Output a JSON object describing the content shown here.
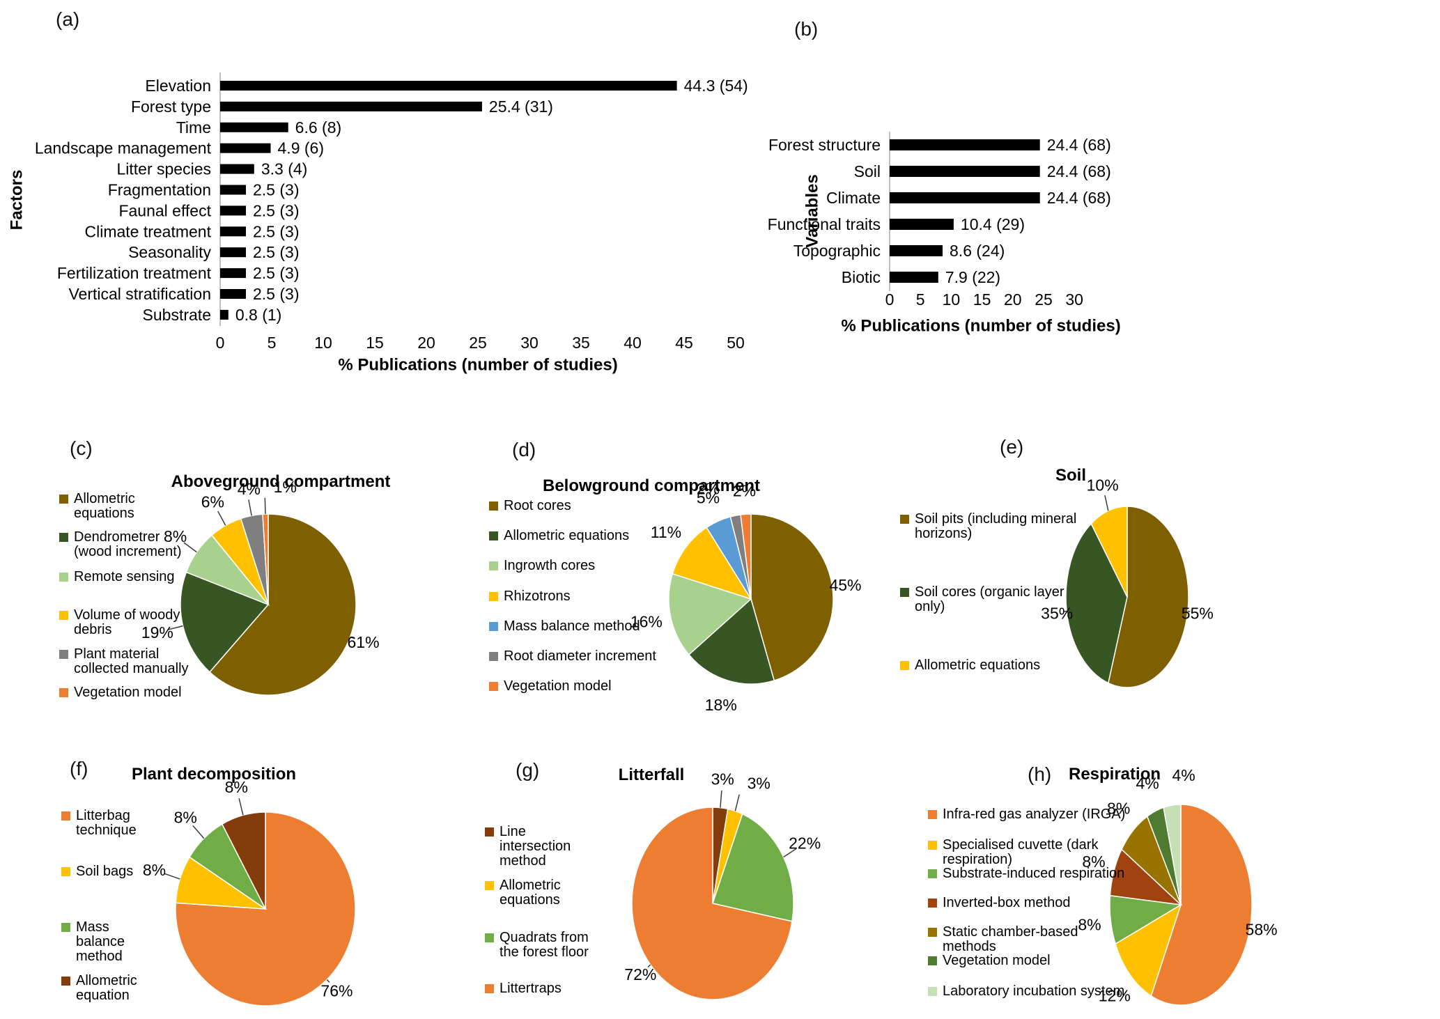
{
  "chart_data": [
    {
      "panel": "(a)",
      "type": "bar",
      "orientation": "horizontal",
      "ylabel": "Factors",
      "xlabel": "% Publications (number of studies)",
      "categories": [
        "Elevation",
        "Forest type",
        "Time",
        "Landscape management",
        "Litter species",
        "Fragmentation",
        "Faunal effect",
        "Climate treatment",
        "Seasonality",
        "Fertilization treatment",
        "Vertical stratification",
        "Substrate"
      ],
      "values": [
        44.3,
        25.4,
        6.6,
        4.9,
        3.3,
        2.5,
        2.5,
        2.5,
        2.5,
        2.5,
        2.5,
        0.8
      ],
      "counts": [
        54,
        31,
        8,
        6,
        4,
        3,
        3,
        3,
        3,
        3,
        3,
        1
      ],
      "value_labels": [
        "44.3 (54)",
        "25.4 (31)",
        "6.6 (8)",
        "4.9 (6)",
        "3.3 (4)",
        "2.5 (3)",
        "2.5 (3)",
        "2.5 (3)",
        "2.5 (3)",
        "2.5 (3)",
        "2.5 (3)",
        "0.8 (1)"
      ],
      "xticks": [
        0,
        5,
        10,
        15,
        20,
        25,
        30,
        35,
        40,
        45,
        50
      ],
      "xlim": [
        0,
        50
      ],
      "bar_color": "#000000",
      "grid": false
    },
    {
      "panel": "(b)",
      "type": "bar",
      "orientation": "horizontal",
      "ylabel": "Variables",
      "xlabel": "% Publications (number of studies)",
      "categories": [
        "Forest structure",
        "Soil",
        "Climate",
        "Functional traits",
        "Topographic",
        "Biotic"
      ],
      "values": [
        24.4,
        24.4,
        24.4,
        10.4,
        8.6,
        7.9
      ],
      "counts": [
        68,
        68,
        68,
        29,
        24,
        22
      ],
      "value_labels": [
        "24.4 (68)",
        "24.4 (68)",
        "24.4 (68)",
        "10.4 (29)",
        "8.6 (24)",
        "7.9 (22)"
      ],
      "xticks": [
        0,
        5,
        10,
        15,
        20,
        25,
        30
      ],
      "xlim": [
        0,
        30
      ],
      "bar_color": "#000000",
      "grid": false
    },
    {
      "panel": "(c)",
      "type": "pie",
      "title": "Aboveground compartment",
      "legend_position": "left",
      "slices": [
        {
          "label": "Allometric equations",
          "value": 61,
          "pct_label": "61%",
          "color": "#7F6000"
        },
        {
          "label": "Dendrometrer (wood increment)",
          "value": 19,
          "pct_label": "19%",
          "color": "#375623"
        },
        {
          "label": "Remote sensing",
          "value": 8,
          "pct_label": "8%",
          "color": "#A9D18E"
        },
        {
          "label": "Volume of woody debris",
          "value": 6,
          "pct_label": "6%",
          "color": "#FFC000"
        },
        {
          "label": "Plant material collected manually",
          "value": 4,
          "pct_label": "4%",
          "color": "#7F7F7F"
        },
        {
          "label": "Vegetation model",
          "value": 1,
          "pct_label": "1%",
          "color": "#ED7D31"
        }
      ]
    },
    {
      "panel": "(d)",
      "type": "pie",
      "title": "Belowground compartment",
      "legend_position": "left",
      "slices": [
        {
          "label": "Root cores",
          "value": 45,
          "pct_label": "45%",
          "color": "#7F6000"
        },
        {
          "label": "Allometric equations",
          "value": 18,
          "pct_label": "18%",
          "color": "#375623"
        },
        {
          "label": "Ingrowth cores",
          "value": 16,
          "pct_label": "16%",
          "color": "#A9D18E"
        },
        {
          "label": "Rhizotrons",
          "value": 11,
          "pct_label": "11%",
          "color": "#FFC000"
        },
        {
          "label": "Mass balance method",
          "value": 5,
          "pct_label": "5%",
          "color": "#5B9BD5"
        },
        {
          "label": "Root diameter increment",
          "value": 2,
          "pct_label": "2%",
          "color": "#7F7F7F"
        },
        {
          "label": "Vegetation model",
          "value": 2,
          "pct_label": "2%",
          "color": "#ED7D31"
        }
      ]
    },
    {
      "panel": "(e)",
      "type": "pie",
      "title": "Soil",
      "legend_position": "left",
      "slices": [
        {
          "label": "Soil pits (including mineral horizons)",
          "value": 55,
          "pct_label": "55%",
          "color": "#7F6000"
        },
        {
          "label": "Soil cores (organic layer only)",
          "value": 35,
          "pct_label": "35%",
          "color": "#375623"
        },
        {
          "label": "Allometric equations",
          "value": 10,
          "pct_label": "10%",
          "color": "#FFC000"
        }
      ]
    },
    {
      "panel": "(f)",
      "type": "pie",
      "title": "Plant decomposition",
      "legend_position": "left",
      "slices": [
        {
          "label": "Litterbag technique",
          "value": 76,
          "pct_label": "76%",
          "color": "#ED7D31"
        },
        {
          "label": "Soil bags",
          "value": 8,
          "pct_label": "8%",
          "color": "#FFC000"
        },
        {
          "label": "Mass balance method",
          "value": 8,
          "pct_label": "8%",
          "color": "#70AD47"
        },
        {
          "label": "Allometric equation",
          "value": 8,
          "pct_label": "8%",
          "color": "#843C0C"
        }
      ]
    },
    {
      "panel": "(g)",
      "type": "pie",
      "title": "Litterfall",
      "legend_position": "left",
      "slices": [
        {
          "label": "Line intersection method",
          "value": 3,
          "pct_label": "3%",
          "color": "#843C0C"
        },
        {
          "label": "Allometric equations",
          "value": 3,
          "pct_label": "3%",
          "color": "#FFC000"
        },
        {
          "label": "Quadrats from the forest floor",
          "value": 22,
          "pct_label": "22%",
          "color": "#70AD47"
        },
        {
          "label": "Littertraps",
          "value": 72,
          "pct_label": "72%",
          "color": "#ED7D31"
        }
      ]
    },
    {
      "panel": "(h)",
      "type": "pie",
      "title": "Respiration",
      "legend_position": "left",
      "slices": [
        {
          "label": "Infra-red gas analyzer (IRGA)",
          "value": 58,
          "pct_label": "58%",
          "color": "#ED7D31"
        },
        {
          "label": "Specialised cuvette (dark respiration)",
          "value": 12,
          "pct_label": "12%",
          "color": "#FFC000"
        },
        {
          "label": "Substrate-induced respiration",
          "value": 8,
          "pct_label": "8%",
          "color": "#70AD47"
        },
        {
          "label": "Inverted-box method",
          "value": 8,
          "pct_label": "8%",
          "color": "#A0430F"
        },
        {
          "label": "Static chamber-based methods",
          "value": 8,
          "pct_label": "8%",
          "color": "#997300"
        },
        {
          "label": "Vegetation model",
          "value": 4,
          "pct_label": "4%",
          "color": "#4E7B2F"
        },
        {
          "label": "Laboratory incubation system",
          "value": 4,
          "pct_label": "4%",
          "color": "#C5E0B4"
        }
      ]
    }
  ]
}
